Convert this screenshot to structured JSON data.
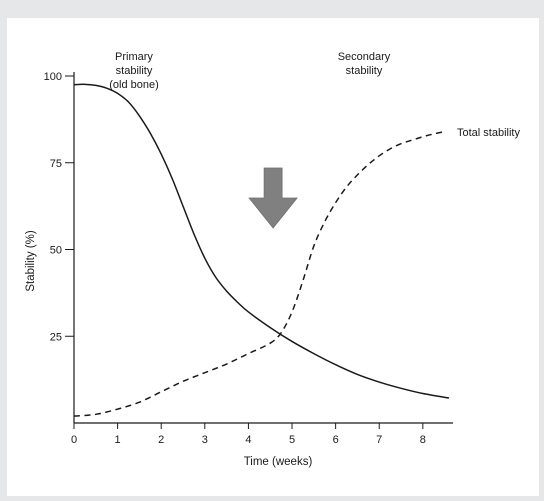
{
  "chart_data": {
    "type": "line",
    "xlabel": "Time (weeks)",
    "ylabel": "Stability (%)",
    "xlim": [
      0,
      8.6
    ],
    "ylim": [
      0,
      100
    ],
    "x_ticks": [
      0,
      1,
      2,
      3,
      4,
      5,
      6,
      7,
      8
    ],
    "y_ticks": [
      25,
      50,
      75,
      100
    ],
    "grid": false,
    "legend": "none",
    "series": [
      {
        "label_lines": [
          "Primary",
          "stability",
          "(old bone)"
        ],
        "style": "solid",
        "color": "#1a1a1a",
        "x": [
          0,
          0.25,
          0.5,
          0.75,
          1.0,
          1.25,
          1.5,
          1.75,
          2.0,
          2.25,
          2.5,
          2.75,
          3.0,
          3.25,
          3.5,
          3.75,
          4.0,
          4.5,
          5.0,
          5.5,
          6.0,
          6.5,
          7.0,
          7.5,
          8.0,
          8.6
        ],
        "y": [
          97.5,
          97.6,
          97.3,
          96.5,
          95.0,
          92.5,
          88.5,
          83.5,
          77.5,
          70.5,
          62.5,
          54.5,
          47.5,
          42.0,
          38.0,
          34.8,
          32.0,
          27.5,
          23.5,
          20.0,
          16.8,
          14.0,
          11.8,
          10.0,
          8.5,
          7.2
        ]
      },
      {
        "label_lines": [
          "Secondary",
          "stability"
        ],
        "style": "dashed",
        "color": "#1a1a1a",
        "x": [
          0,
          0.5,
          1.0,
          1.5,
          2.0,
          2.5,
          3.0,
          3.5,
          4.0,
          4.5,
          4.75,
          5.0,
          5.25,
          5.5,
          5.75,
          6.0,
          6.25,
          6.5,
          6.75,
          7.0,
          7.25,
          7.5,
          7.75,
          8.0,
          8.25,
          8.5
        ],
        "y": [
          2.0,
          2.5,
          4.0,
          6.0,
          9.0,
          12.0,
          14.5,
          17.0,
          20.0,
          23.0,
          26.0,
          32.0,
          41.0,
          51.0,
          58.0,
          63.5,
          68.0,
          71.5,
          74.5,
          77.0,
          79.0,
          80.5,
          81.5,
          82.5,
          83.3,
          84.0
        ]
      }
    ],
    "annotations": {
      "total_stability": "Total stability",
      "arrow_at_week": 4.75,
      "arrow_color": "#808080"
    }
  }
}
